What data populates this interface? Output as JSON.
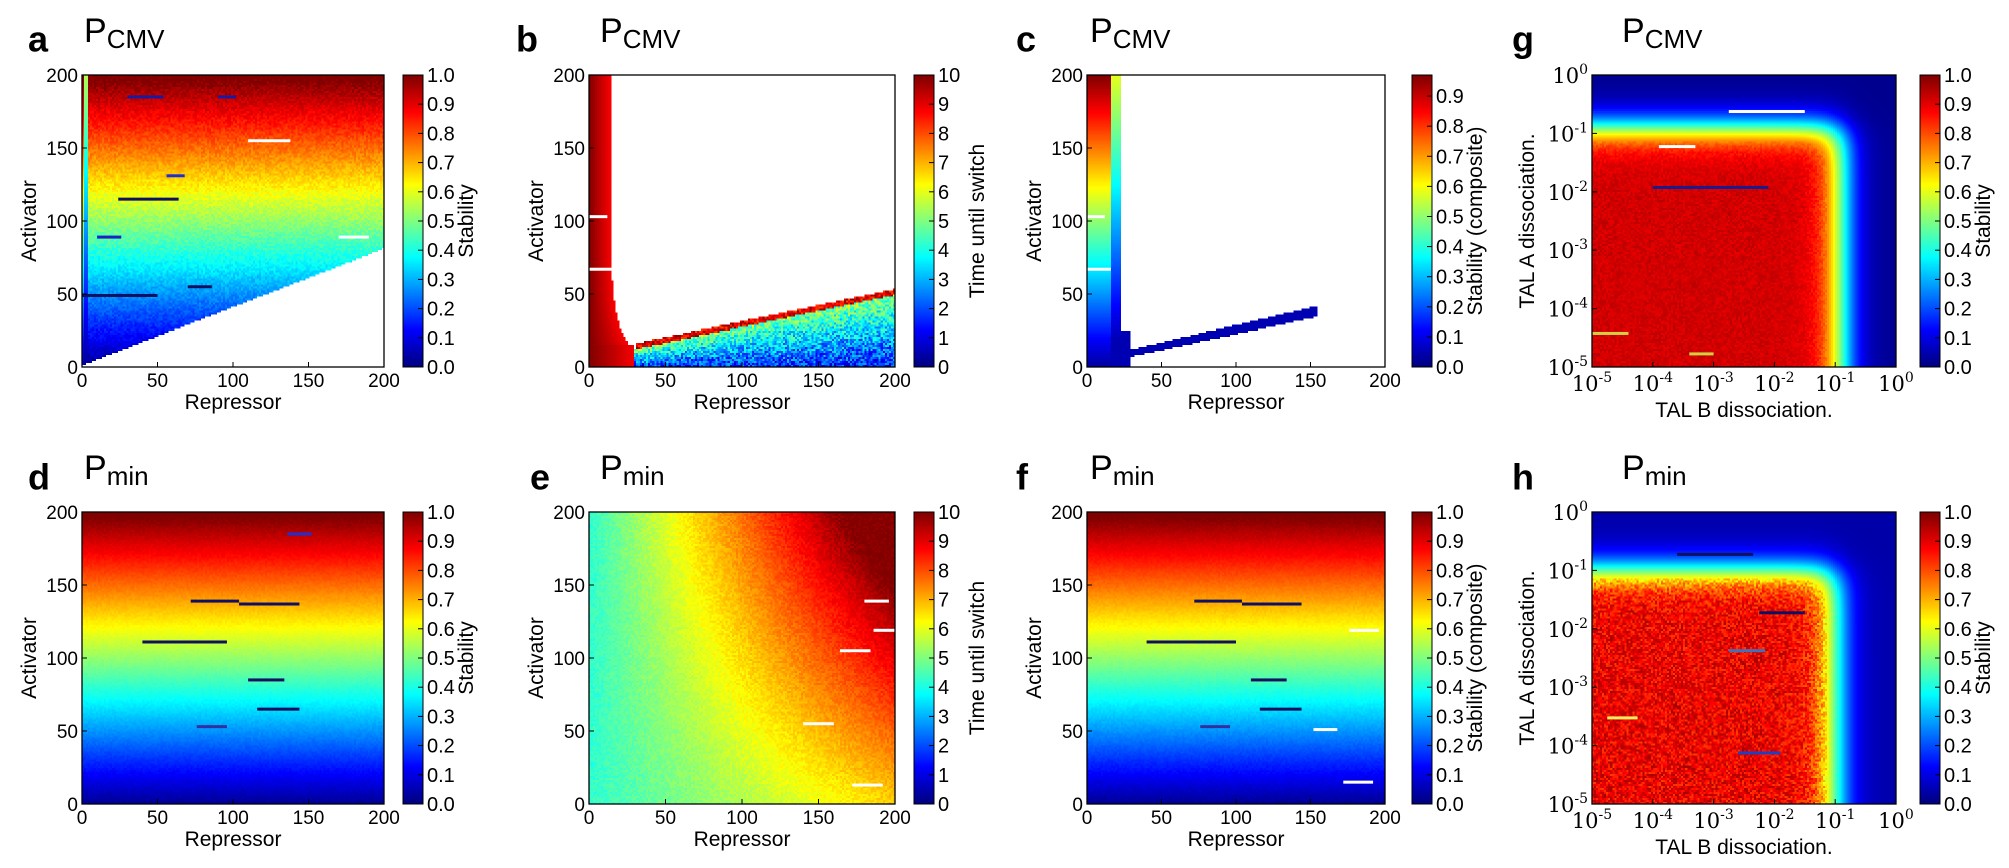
{
  "figure": {
    "panels": [
      {
        "id": "a",
        "label": "a",
        "title_main": "P",
        "title_sub": "CMV",
        "map": "cmv_stability",
        "xlabel": "Repressor",
        "ylabel": "Activator",
        "cbar_label": "Stability",
        "cbar_ticks": [
          "0.0",
          "0.1",
          "0.2",
          "0.3",
          "0.4",
          "0.5",
          "0.6",
          "0.7",
          "0.8",
          "0.9",
          "1.0"
        ],
        "cbar_range": [
          0,
          1
        ]
      },
      {
        "id": "b",
        "label": "b",
        "title_main": "P",
        "title_sub": "CMV",
        "map": "cmv_time",
        "xlabel": "Repressor",
        "ylabel": "Activator",
        "cbar_label": "Time until switch",
        "cbar_ticks": [
          "0",
          "1",
          "2",
          "3",
          "4",
          "5",
          "6",
          "7",
          "8",
          "9",
          "10"
        ],
        "cbar_range": [
          0,
          10
        ]
      },
      {
        "id": "c",
        "label": "c",
        "title_main": "P",
        "title_sub": "CMV",
        "map": "cmv_composite",
        "xlabel": "Repressor",
        "ylabel": "Activator",
        "cbar_label": "Stability (composite)",
        "cbar_ticks": [
          "0.0",
          "0.1",
          "0.2",
          "0.3",
          "0.4",
          "0.5",
          "0.6",
          "0.7",
          "0.8",
          "0.9"
        ],
        "cbar_range": [
          0,
          0.97
        ]
      },
      {
        "id": "g",
        "label": "g",
        "title_main": "P",
        "title_sub": "CMV",
        "map": "cmv_tal",
        "xlabel": "TAL B dissociation.",
        "ylabel": "TAL A dissociation.",
        "cbar_label": "Stability",
        "cbar_ticks": [
          "0.0",
          "0.1",
          "0.2",
          "0.3",
          "0.4",
          "0.5",
          "0.6",
          "0.7",
          "0.8",
          "0.9",
          "1.0"
        ],
        "cbar_range": [
          0,
          1
        ]
      },
      {
        "id": "d",
        "label": "d",
        "title_main": "P",
        "title_sub": "min",
        "map": "min_stability",
        "xlabel": "Repressor",
        "ylabel": "Activator",
        "cbar_label": "Stability",
        "cbar_ticks": [
          "0.0",
          "0.1",
          "0.2",
          "0.3",
          "0.4",
          "0.5",
          "0.6",
          "0.7",
          "0.8",
          "0.9",
          "1.0"
        ],
        "cbar_range": [
          0,
          1
        ]
      },
      {
        "id": "e",
        "label": "e",
        "title_main": "P",
        "title_sub": "min",
        "map": "min_time",
        "xlabel": "Repressor",
        "ylabel": "Activator",
        "cbar_label": "Time until switch",
        "cbar_ticks": [
          "0",
          "1",
          "2",
          "3",
          "4",
          "5",
          "6",
          "7",
          "8",
          "9",
          "10"
        ],
        "cbar_range": [
          0,
          10
        ]
      },
      {
        "id": "f",
        "label": "f",
        "title_main": "P",
        "title_sub": "min",
        "map": "min_composite",
        "xlabel": "Repressor",
        "ylabel": "Activator",
        "cbar_label": "Stability (composite)",
        "cbar_ticks": [
          "0.0",
          "0.1",
          "0.2",
          "0.3",
          "0.4",
          "0.5",
          "0.6",
          "0.7",
          "0.8",
          "0.9",
          "1.0"
        ],
        "cbar_range": [
          0,
          1
        ]
      },
      {
        "id": "h",
        "label": "h",
        "title_main": "P",
        "title_sub": "min",
        "map": "min_tal",
        "xlabel": "TAL B dissociation.",
        "ylabel": "TAL A dissociation.",
        "cbar_label": "Stability",
        "cbar_ticks": [
          "0.0",
          "0.1",
          "0.2",
          "0.3",
          "0.4",
          "0.5",
          "0.6",
          "0.7",
          "0.8",
          "0.9",
          "1.0"
        ],
        "cbar_range": [
          0,
          1
        ]
      }
    ]
  },
  "chart_data": [
    {
      "type": "heatmap",
      "panel": "a",
      "x_range": [
        0,
        200
      ],
      "y_range": [
        0,
        200
      ],
      "x_ticks": [
        "0",
        "50",
        "100",
        "150",
        "200"
      ],
      "y_ticks": [
        "0",
        "50",
        "100",
        "150",
        "200"
      ],
      "value_range": [
        0,
        1
      ],
      "colormap": "jet",
      "description_regions": {
        "undefined_region": "white below line from (0,0) to (200,80)"
      }
    },
    {
      "type": "heatmap",
      "panel": "b",
      "x_range": [
        0,
        200
      ],
      "y_range": [
        0,
        200
      ],
      "x_ticks": [
        "0",
        "50",
        "100",
        "150",
        "200"
      ],
      "y_ticks": [
        "0",
        "50",
        "100",
        "150",
        "200"
      ],
      "value_range": [
        0,
        10
      ],
      "colormap": "jet"
    },
    {
      "type": "heatmap",
      "panel": "c",
      "x_range": [
        0,
        200
      ],
      "y_range": [
        0,
        200
      ],
      "x_ticks": [
        "0",
        "50",
        "100",
        "150",
        "200"
      ],
      "y_ticks": [
        "0",
        "50",
        "100",
        "150",
        "200"
      ],
      "value_range": [
        0,
        0.97
      ],
      "colormap": "jet"
    },
    {
      "type": "heatmap",
      "panel": "g",
      "x_scale": "log",
      "y_scale": "log",
      "x_range": [
        1e-05,
        1
      ],
      "y_range": [
        1e-05,
        1
      ],
      "x_ticks": [
        "-5",
        "-4",
        "-3",
        "-2",
        "-1",
        "0"
      ],
      "y_ticks": [
        "-5",
        "-4",
        "-3",
        "-2",
        "-1",
        "0"
      ],
      "value_range": [
        0,
        1
      ],
      "colormap": "jet"
    },
    {
      "type": "heatmap",
      "panel": "d",
      "x_range": [
        0,
        200
      ],
      "y_range": [
        0,
        200
      ],
      "x_ticks": [
        "0",
        "50",
        "100",
        "150",
        "200"
      ],
      "y_ticks": [
        "0",
        "50",
        "100",
        "150",
        "200"
      ],
      "value_range": [
        0,
        1
      ],
      "colormap": "jet"
    },
    {
      "type": "heatmap",
      "panel": "e",
      "x_range": [
        0,
        200
      ],
      "y_range": [
        0,
        200
      ],
      "x_ticks": [
        "0",
        "50",
        "100",
        "150",
        "200"
      ],
      "y_ticks": [
        "0",
        "50",
        "100",
        "150",
        "200"
      ],
      "value_range": [
        0,
        10
      ],
      "colormap": "jet"
    },
    {
      "type": "heatmap",
      "panel": "f",
      "x_range": [
        0,
        200
      ],
      "y_range": [
        0,
        200
      ],
      "x_ticks": [
        "0",
        "50",
        "100",
        "150",
        "200"
      ],
      "y_ticks": [
        "0",
        "50",
        "100",
        "150",
        "200"
      ],
      "value_range": [
        0,
        1
      ],
      "colormap": "jet"
    },
    {
      "type": "heatmap",
      "panel": "h",
      "x_scale": "log",
      "y_scale": "log",
      "x_range": [
        1e-05,
        1
      ],
      "y_range": [
        1e-05,
        1
      ],
      "x_ticks": [
        "-5",
        "-4",
        "-3",
        "-2",
        "-1",
        "0"
      ],
      "y_ticks": [
        "-5",
        "-4",
        "-3",
        "-2",
        "-1",
        "0"
      ],
      "value_range": [
        0,
        1
      ],
      "colormap": "jet"
    }
  ]
}
